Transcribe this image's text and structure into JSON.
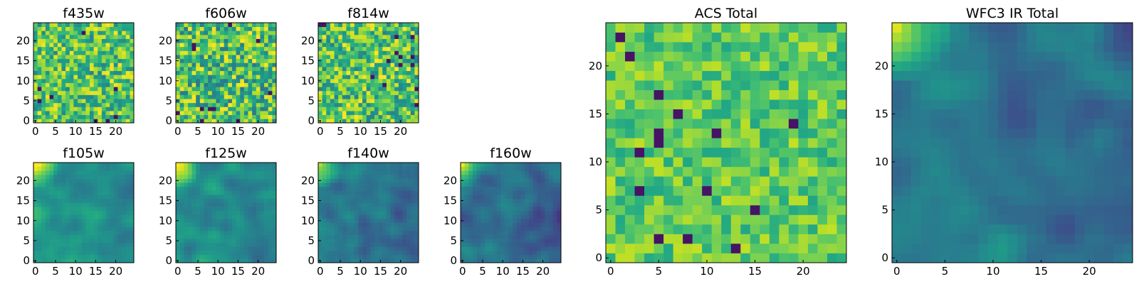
{
  "chart_data": [
    {
      "id": "f435w",
      "type": "heatmap",
      "title": "f435w",
      "grid_size": 25,
      "xlim": [
        -0.5,
        24.5
      ],
      "ylim": [
        -0.5,
        24.5
      ],
      "xticks": [
        0,
        5,
        10,
        15,
        20
      ],
      "yticks": [
        0,
        5,
        10,
        15,
        20
      ],
      "colormap": "viridis",
      "pattern": "uniform_noise",
      "mean": 0.72,
      "spread": 0.3
    },
    {
      "id": "f606w",
      "type": "heatmap",
      "title": "f606w",
      "grid_size": 25,
      "xlim": [
        -0.5,
        24.5
      ],
      "ylim": [
        -0.5,
        24.5
      ],
      "xticks": [
        0,
        5,
        10,
        15,
        20
      ],
      "yticks": [
        0,
        5,
        10,
        15,
        20
      ],
      "colormap": "viridis",
      "pattern": "uniform_noise",
      "mean": 0.7,
      "spread": 0.34
    },
    {
      "id": "f814w",
      "type": "heatmap",
      "title": "f814w",
      "grid_size": 25,
      "xlim": [
        -0.5,
        24.5
      ],
      "ylim": [
        -0.5,
        24.5
      ],
      "xticks": [
        0,
        5,
        10,
        15,
        20
      ],
      "yticks": [
        0,
        5,
        10,
        15,
        20
      ],
      "colormap": "viridis",
      "pattern": "uniform_noise",
      "mean": 0.72,
      "spread": 0.32
    },
    {
      "id": "f105w",
      "type": "heatmap",
      "title": "f105w",
      "grid_size": 25,
      "xlim": [
        -0.5,
        24.5
      ],
      "ylim": [
        -0.5,
        24.5
      ],
      "xticks": [
        0,
        5,
        10,
        15,
        20
      ],
      "yticks": [
        0,
        5,
        10,
        15,
        20
      ],
      "colormap": "viridis",
      "pattern": "smooth_field_bright_top_left",
      "mean": 0.55,
      "spread": 0.22
    },
    {
      "id": "f125w",
      "type": "heatmap",
      "title": "f125w",
      "grid_size": 25,
      "xlim": [
        -0.5,
        24.5
      ],
      "ylim": [
        -0.5,
        24.5
      ],
      "xticks": [
        0,
        5,
        10,
        15,
        20
      ],
      "yticks": [
        0,
        5,
        10,
        15,
        20
      ],
      "colormap": "viridis",
      "pattern": "smooth_field_bright_top_left",
      "mean": 0.52,
      "spread": 0.22
    },
    {
      "id": "f140w",
      "type": "heatmap",
      "title": "f140w",
      "grid_size": 25,
      "xlim": [
        -0.5,
        24.5
      ],
      "ylim": [
        -0.5,
        24.5
      ],
      "xticks": [
        0,
        5,
        10,
        15,
        20
      ],
      "yticks": [
        0,
        5,
        10,
        15,
        20
      ],
      "colormap": "viridis",
      "pattern": "smooth_field_bright_top_left",
      "mean": 0.42,
      "spread": 0.22
    },
    {
      "id": "f160w",
      "type": "heatmap",
      "title": "f160w",
      "grid_size": 25,
      "xlim": [
        -0.5,
        24.5
      ],
      "ylim": [
        -0.5,
        24.5
      ],
      "xticks": [
        0,
        5,
        10,
        15,
        20
      ],
      "yticks": [
        0,
        5,
        10,
        15,
        20
      ],
      "colormap": "viridis",
      "pattern": "smooth_field_bright_top_left",
      "mean": 0.38,
      "spread": 0.22
    },
    {
      "id": "acs_total",
      "type": "heatmap",
      "title": "ACS Total",
      "grid_size": 25,
      "xlim": [
        -0.5,
        24.5
      ],
      "ylim": [
        -0.5,
        24.5
      ],
      "xticks": [
        0,
        5,
        10,
        15,
        20
      ],
      "yticks": [
        0,
        5,
        10,
        15,
        20
      ],
      "colormap": "viridis",
      "pattern": "uniform_noise",
      "mean": 0.75,
      "spread": 0.18
    },
    {
      "id": "wfc3_ir_total",
      "type": "heatmap",
      "title": "WFC3 IR Total",
      "grid_size": 25,
      "xlim": [
        -0.5,
        24.5
      ],
      "ylim": [
        -0.5,
        24.5
      ],
      "xticks": [
        0,
        5,
        10,
        15,
        20
      ],
      "yticks": [
        0,
        5,
        10,
        15,
        20
      ],
      "colormap": "viridis",
      "pattern": "smooth_field_bright_top_left",
      "mean": 0.42,
      "spread": 0.2
    }
  ]
}
